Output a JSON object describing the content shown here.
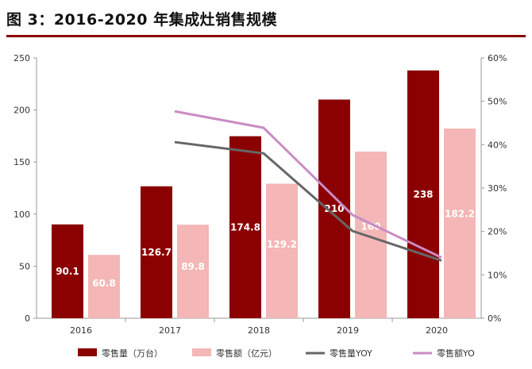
{
  "title": "图 3：2016-2020 年集成灶销售规模",
  "chart_data": {
    "type": "bar",
    "categories": [
      "2016",
      "2017",
      "2018",
      "2019",
      "2020"
    ],
    "ylim": [
      0,
      250
    ],
    "y_ticks": [
      "0",
      "50",
      "100",
      "150",
      "200",
      "250"
    ],
    "y2lim": [
      0,
      60
    ],
    "y2_ticks": [
      "0%",
      "10%",
      "20%",
      "30%",
      "40%",
      "50%",
      "60%"
    ],
    "grid": false,
    "legend_position": "bottom",
    "series": [
      {
        "name": "零售量（万台）",
        "type": "bar",
        "axis": "left",
        "color": "#8b0000",
        "values": [
          90.1,
          126.7,
          174.8,
          210,
          238
        ],
        "labels": [
          "90.1",
          "126.7",
          "174.8",
          "210",
          "238"
        ]
      },
      {
        "name": "零售额（亿元）",
        "type": "bar",
        "axis": "left",
        "color": "#f4b6b6",
        "values": [
          60.8,
          89.8,
          129.2,
          160,
          182.2
        ],
        "labels": [
          "60.8",
          "89.8",
          "129.2",
          "160",
          "182.2"
        ]
      },
      {
        "name": "零售量YOY",
        "type": "line",
        "axis": "right",
        "color": "#666666",
        "values": [
          null,
          40.6,
          38.0,
          20.1,
          13.3
        ]
      },
      {
        "name": "零售额YO",
        "type": "line",
        "axis": "right",
        "color": "#c98bc3",
        "values": [
          null,
          47.7,
          43.9,
          23.8,
          14.0
        ]
      }
    ]
  }
}
